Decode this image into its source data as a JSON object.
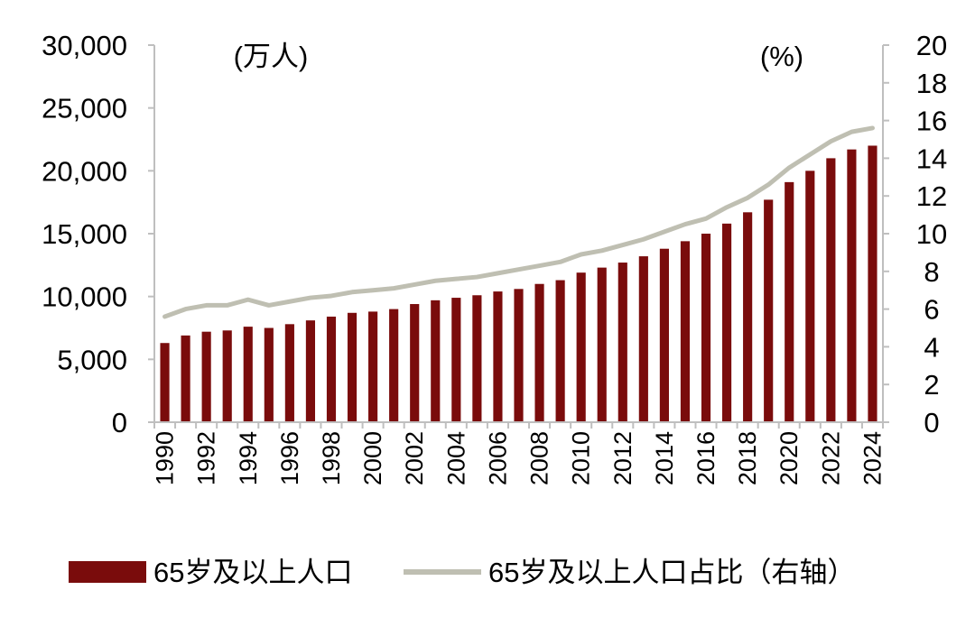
{
  "chart_data": {
    "type": "bar",
    "categories": [
      "1990",
      "1991",
      "1992",
      "1993",
      "1994",
      "1995",
      "1996",
      "1997",
      "1998",
      "1999",
      "2000",
      "2001",
      "2002",
      "2003",
      "2004",
      "2005",
      "2006",
      "2007",
      "2008",
      "2009",
      "2010",
      "2011",
      "2012",
      "2013",
      "2014",
      "2015",
      "2016",
      "2017",
      "2018",
      "2019",
      "2020",
      "2021",
      "2022",
      "2023",
      "2024"
    ],
    "x_tick_labels": [
      "1990",
      "1992",
      "1994",
      "1996",
      "1998",
      "2000",
      "2002",
      "2004",
      "2006",
      "2008",
      "2010",
      "2012",
      "2014",
      "2016",
      "2018",
      "2020",
      "2022",
      "2024"
    ],
    "series": [
      {
        "name": "65岁及以上人口",
        "type": "bar",
        "axis": "left",
        "color": "#7a0c0c",
        "values": [
          6300,
          6900,
          7200,
          7300,
          7600,
          7500,
          7800,
          8100,
          8400,
          8700,
          8800,
          9000,
          9400,
          9700,
          9900,
          10100,
          10400,
          10600,
          11000,
          11300,
          11900,
          12300,
          12700,
          13200,
          13800,
          14400,
          15000,
          15800,
          16700,
          17700,
          19100,
          20000,
          21000,
          21700,
          22000
        ]
      },
      {
        "name": "65岁及以上人口占比（右轴）",
        "type": "line",
        "axis": "right",
        "color": "#bfbfb2",
        "values": [
          5.6,
          6.0,
          6.2,
          6.2,
          6.5,
          6.2,
          6.4,
          6.6,
          6.7,
          6.9,
          7.0,
          7.1,
          7.3,
          7.5,
          7.6,
          7.7,
          7.9,
          8.1,
          8.3,
          8.5,
          8.9,
          9.1,
          9.4,
          9.7,
          10.1,
          10.5,
          10.8,
          11.4,
          11.9,
          12.6,
          13.5,
          14.2,
          14.9,
          15.4,
          15.6
        ]
      }
    ],
    "y_left": {
      "unit_label": "(万人)",
      "ylim": [
        0,
        30000
      ],
      "ticks": [
        0,
        5000,
        10000,
        15000,
        20000,
        25000,
        30000
      ],
      "tick_labels": [
        "0",
        "5,000",
        "10,000",
        "15,000",
        "20,000",
        "25,000",
        "30,000"
      ]
    },
    "y_right": {
      "unit_label": "(%)",
      "ylim": [
        0,
        20
      ],
      "ticks": [
        0,
        2,
        4,
        6,
        8,
        10,
        12,
        14,
        16,
        18,
        20
      ],
      "tick_labels": [
        "0",
        "2",
        "4",
        "6",
        "8",
        "10",
        "12",
        "14",
        "16",
        "18",
        "20"
      ]
    },
    "grid": false,
    "legend_position": "bottom"
  }
}
